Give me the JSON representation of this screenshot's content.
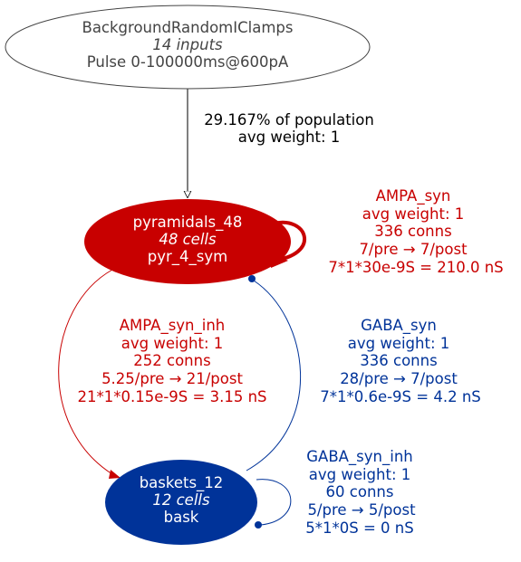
{
  "colors": {
    "input": "#444444",
    "pyramidal": "#c80000",
    "basket": "#003399",
    "excitatory_label": "#c80000",
    "inhibitory_label": "#003399",
    "background": "#ffffff"
  },
  "nodes": {
    "input": {
      "name": "BackgroundRandomIClamps",
      "count": "14 inputs",
      "desc": "Pulse 0-100000ms@600pA"
    },
    "pyramidals": {
      "name": "pyramidals_48",
      "count": "48 cells",
      "type": "pyr_4_sym"
    },
    "baskets": {
      "name": "baskets_12",
      "count": "12 cells",
      "type": "bask"
    }
  },
  "edges": {
    "input_to_pyr": {
      "line1": "29.167% of population",
      "line2": "avg weight: 1"
    },
    "pyr_self": {
      "synapse": "AMPA_syn",
      "weight": "avg weight: 1",
      "conns": "336 conns",
      "ratio": "7/pre → 7/post",
      "total": "7*1*30e-9S = 210.0 nS"
    },
    "pyr_to_bask": {
      "synapse": "AMPA_syn_inh",
      "weight": "avg weight: 1",
      "conns": "252 conns",
      "ratio": "5.25/pre → 21/post",
      "total": "21*1*0.15e-9S = 3.15 nS"
    },
    "bask_to_pyr": {
      "synapse": "GABA_syn",
      "weight": "avg weight: 1",
      "conns": "336 conns",
      "ratio": "28/pre → 7/post",
      "total": "7*1*0.6e-9S = 4.2 nS"
    },
    "bask_self": {
      "synapse": "GABA_syn_inh",
      "weight": "avg weight: 1",
      "conns": "60 conns",
      "ratio": "5/pre → 5/post",
      "total": "5*1*0S = 0 nS"
    }
  }
}
